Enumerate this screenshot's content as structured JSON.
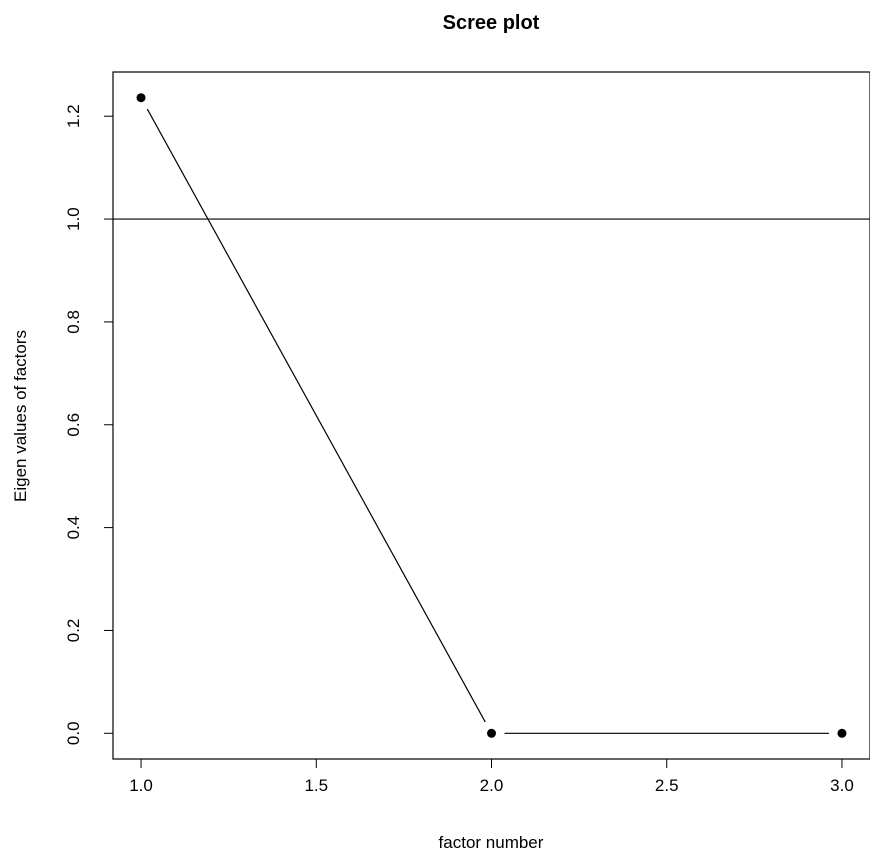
{
  "chart_data": {
    "type": "line",
    "title": "Scree plot",
    "xlabel": "factor number",
    "ylabel": "Eigen values of factors",
    "x": [
      1,
      2,
      3
    ],
    "series": [
      {
        "values": [
          1.236,
          0.0,
          0.0
        ]
      }
    ],
    "reference_line": {
      "y": 1.0
    },
    "xlim": [
      0.92,
      3.08
    ],
    "ylim": [
      -0.05,
      1.286
    ],
    "x_ticks": [
      1.0,
      1.5,
      2.0,
      2.5,
      3.0
    ],
    "x_tick_labels": [
      "1.0",
      "1.5",
      "2.0",
      "2.5",
      "3.0"
    ],
    "y_ticks": [
      0.0,
      0.2,
      0.4,
      0.6,
      0.8,
      1.0,
      1.2
    ],
    "y_tick_labels": [
      "0.0",
      "0.2",
      "0.4",
      "0.6",
      "0.8",
      "1.0",
      "1.2"
    ],
    "grid": false,
    "markers": "filled-circle",
    "line_color": "#000000"
  }
}
